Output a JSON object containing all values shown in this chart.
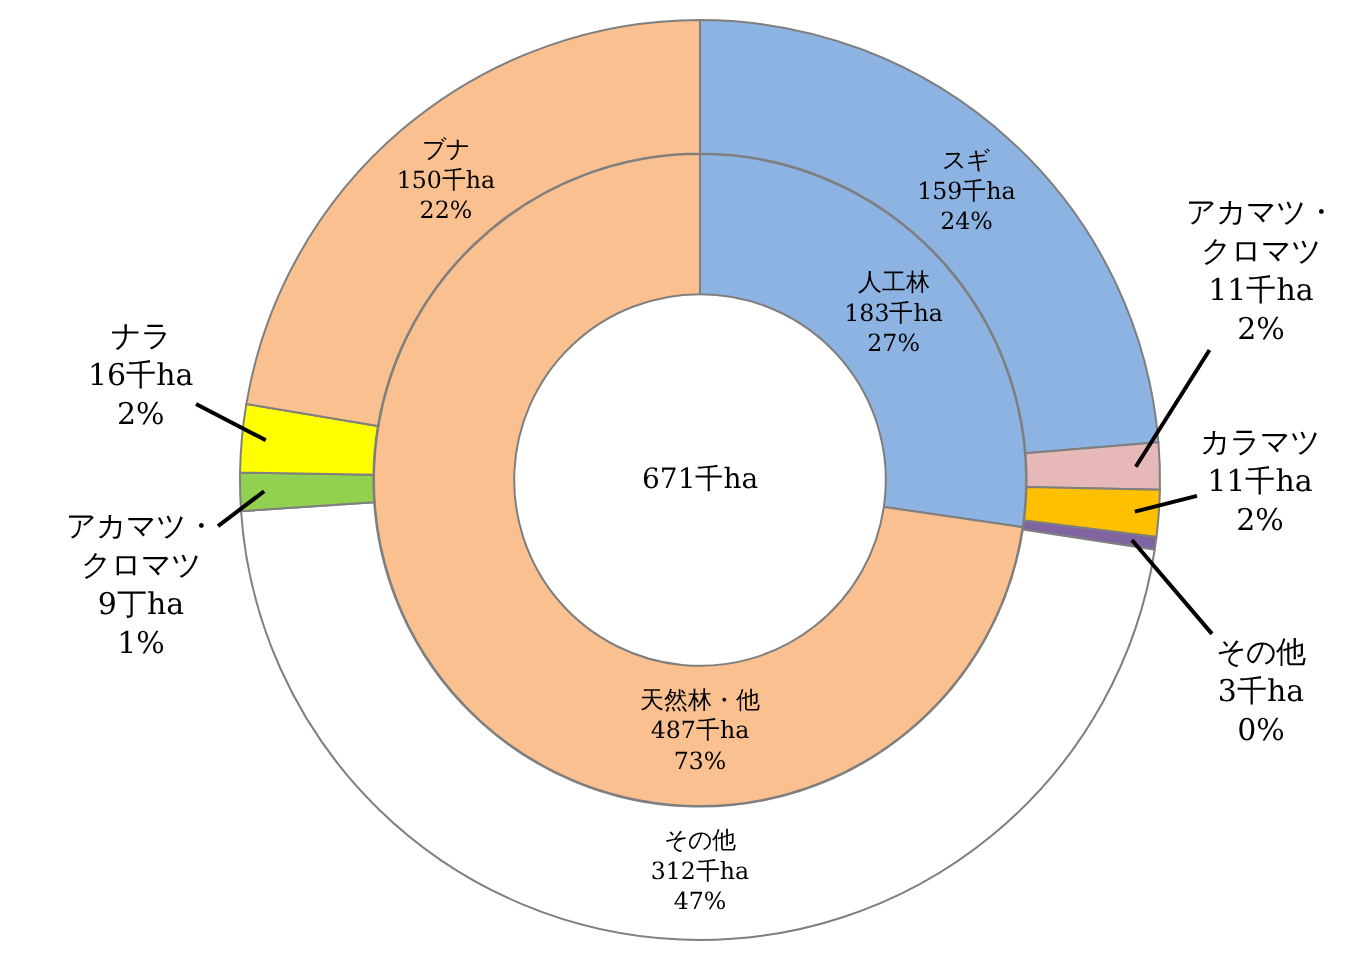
{
  "chart_data": [
    {
      "type": "donut",
      "annotations": [
        "671千ha"
      ],
      "categories": [
        "スギ",
        "アカマツ・クロマツ",
        "カラマツ",
        "その他",
        "その他",
        "アカマツ・クロマツ",
        "ナラ",
        "ブナ"
      ],
      "values": [
        159,
        11,
        11,
        3,
        312,
        9,
        16,
        150
      ],
      "value_labels": [
        "159千ha\n24%",
        "11千ha\n2%",
        "11千ha\n2%",
        "3千ha\n0%",
        "312千ha\n47%",
        "9丁ha\n1%",
        "16千ha\n2%",
        "150千ha\n22%"
      ],
      "colors": [
        "#8db3e2",
        "#e6b9b8",
        "#ffc000",
        "#8064a2",
        "#ffffff",
        "#92d050",
        "#ffff00",
        "#fac090"
      ]
    },
    {
      "type": "donut",
      "categories": [
        "人工林",
        "天然林・他"
      ],
      "values": [
        183,
        487
      ],
      "value_labels": [
        "183千ha\n27%",
        "487千ha\n73%"
      ],
      "colors": [
        "#8db3e2",
        "#fac090"
      ]
    }
  ]
}
